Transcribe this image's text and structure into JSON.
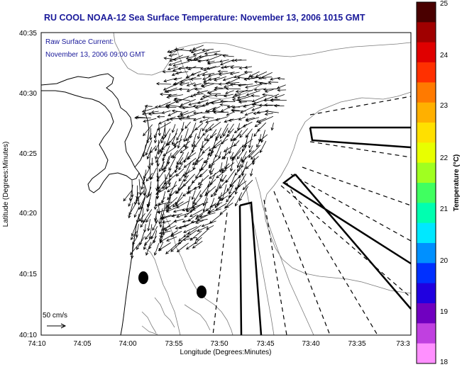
{
  "title": "RU COOL  NOAA-12  Sea Surface Temperature:  November 13, 2006 1015 GMT",
  "annotation": {
    "line1": "Raw Surface Current:",
    "line2": "November 13, 2006 09:00 GMT"
  },
  "axes": {
    "xlabel": "Longitude (Degrees:Minutes)",
    "ylabel": "Latitude (Degrees:Minutes)",
    "xticks": [
      "74:10",
      "74:05",
      "74:00",
      "73:55",
      "73:50",
      "73:45",
      "73:40",
      "73:35",
      "73:3"
    ],
    "yticks": [
      "40:35",
      "40:30",
      "40:25",
      "40:20",
      "40:15",
      "40:10"
    ]
  },
  "scale": {
    "label": "50 cm/s"
  },
  "colorbar": {
    "label": "Temperature (°C)",
    "ticks": [
      "25",
      "24",
      "23",
      "22",
      "21",
      "20",
      "19",
      "18"
    ],
    "colors": [
      "#4a0000",
      "#a00000",
      "#e00000",
      "#ff3000",
      "#ff7a00",
      "#ffb000",
      "#ffe000",
      "#e8ff00",
      "#a0ff20",
      "#40ff60",
      "#00ffb0",
      "#00e8ff",
      "#0090ff",
      "#0030ff",
      "#2000e0",
      "#7000c0",
      "#c040e0",
      "#ff90ff"
    ]
  }
}
